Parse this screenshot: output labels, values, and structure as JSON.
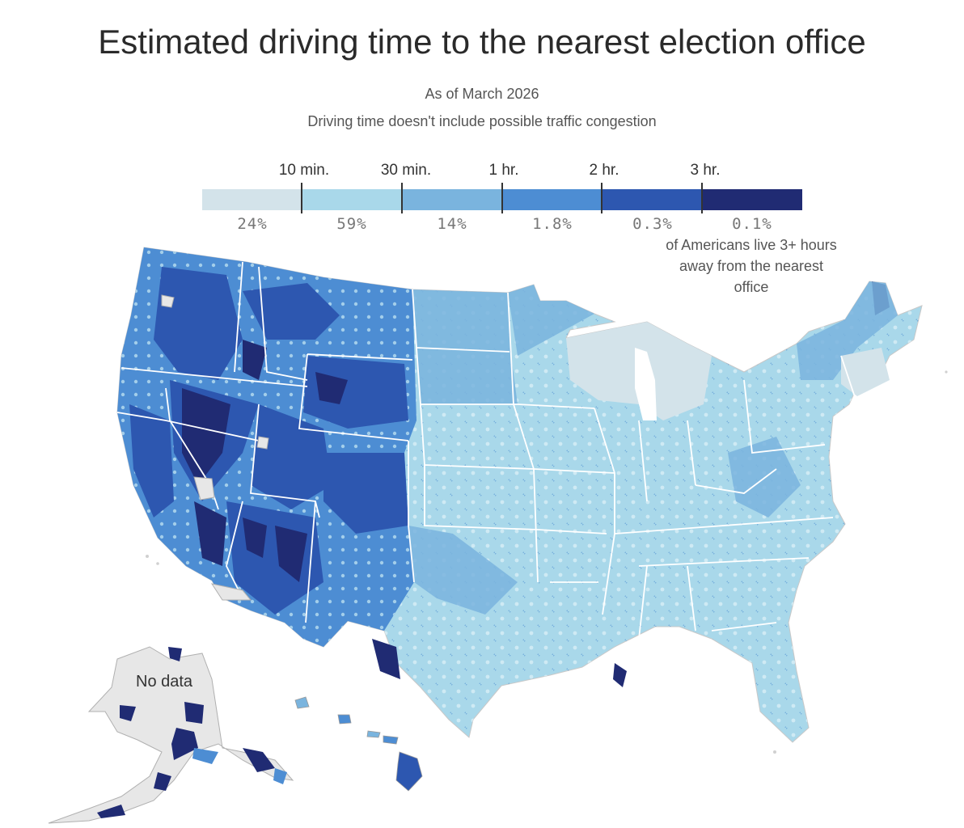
{
  "title": "Estimated driving time to the nearest election office",
  "subtitle": "As of March 2026",
  "subtitle2": "Driving time doesn't include possible traffic congestion",
  "legend": {
    "ticks": [
      "10 min.",
      "30 min.",
      "1 hr.",
      "2 hr.",
      "3 hr."
    ],
    "bins": [
      {
        "share": "24%",
        "color": "#d3e3ea"
      },
      {
        "share": "59%",
        "color": "#a9d8ea"
      },
      {
        "share": "14%",
        "color": "#7ab4de"
      },
      {
        "share": "1.8%",
        "color": "#4d8dd3"
      },
      {
        "share": "0.3%",
        "color": "#2d57b0"
      },
      {
        "share": "0.1%",
        "color": "#202b73"
      }
    ]
  },
  "note": "of Americans live 3+ hours away from the nearest office",
  "map": {
    "no_data_label": "No data",
    "colors": {
      "light": "#a9d8ea",
      "mid": "#7ab4de",
      "blue": "#4d8dd3",
      "dark": "#2d57b0",
      "darkest": "#202b73",
      "nodata": "#e7e7e7",
      "border": "#ffffff"
    }
  }
}
